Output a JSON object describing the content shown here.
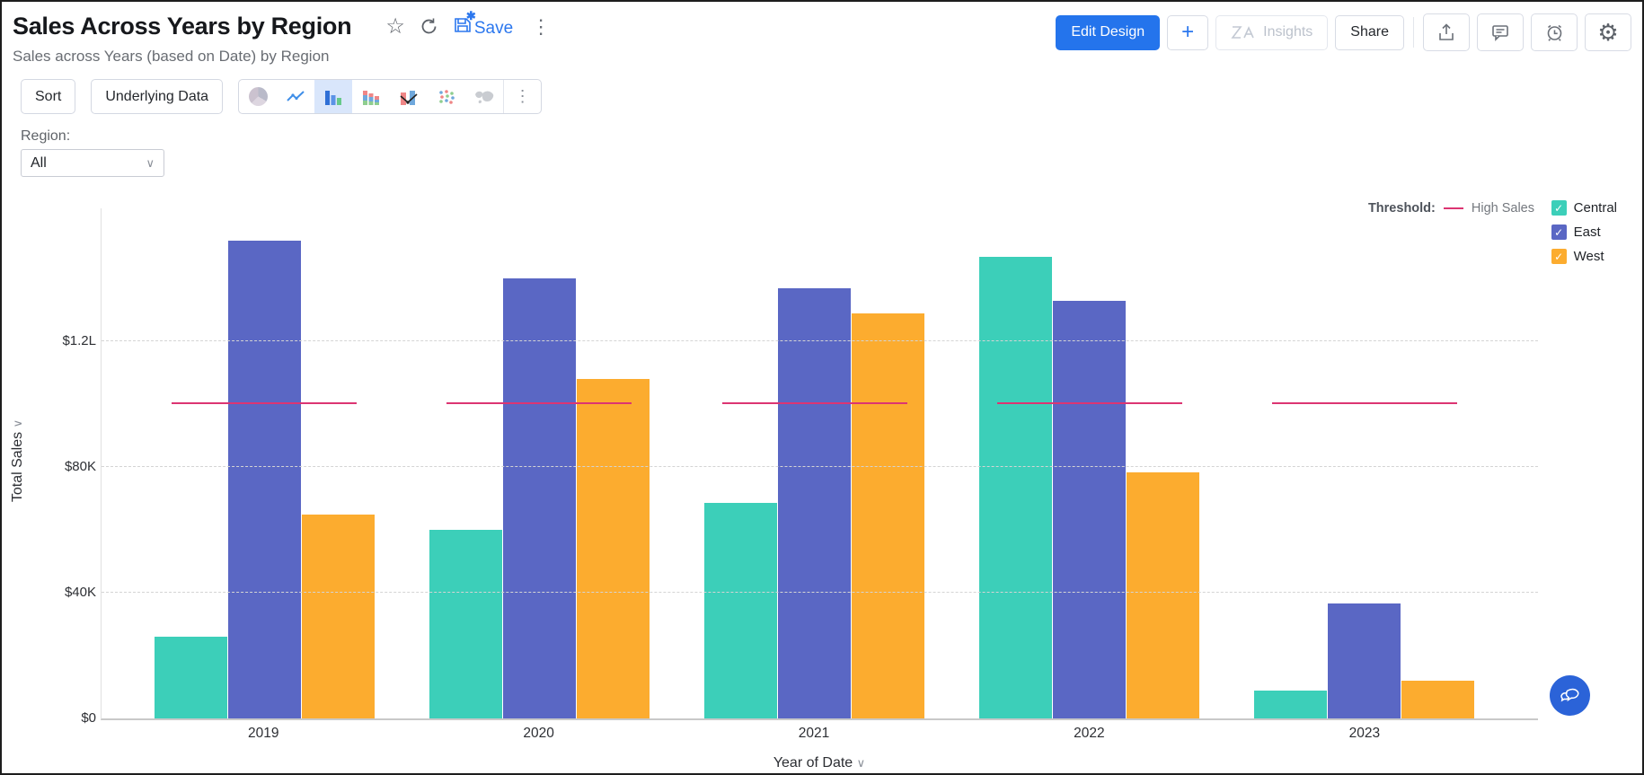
{
  "header": {
    "title": "Sales Across Years by Region",
    "subtitle": "Sales across Years (based on Date) by Region",
    "save_label": "Save",
    "actions": {
      "edit_design": "Edit Design",
      "plus": "+",
      "insights": "Insights",
      "share": "Share"
    },
    "icons": {
      "favorite": "star-outline",
      "refresh": "circular-arrow",
      "save": "floppy-with-asterisk",
      "more": "kebab-menu",
      "export": "share-up-arrow",
      "comment": "speech-bubble",
      "alerts": "alarm-clock",
      "settings": "gear",
      "assistant": "chat-bubbles"
    }
  },
  "toolbar": {
    "sort": "Sort",
    "underlying_data": "Underlying Data",
    "chart_types": [
      "pie",
      "line",
      "bar",
      "stacked-bar",
      "bar-line-combo",
      "scatter",
      "map"
    ],
    "selected_chart_type": "bar"
  },
  "filter": {
    "label": "Region:",
    "value": "All"
  },
  "chart_data": {
    "type": "bar",
    "title": "Sales Across Years by Region",
    "categories": [
      "2019",
      "2020",
      "2021",
      "2022",
      "2023"
    ],
    "series": [
      {
        "name": "Central",
        "color": "#3ccfb9",
        "values": [
          26000,
          60000,
          68500,
          147000,
          9000
        ]
      },
      {
        "name": "East",
        "color": "#5a67c4",
        "values": [
          152000,
          140000,
          137000,
          133000,
          36500
        ]
      },
      {
        "name": "West",
        "color": "#fcac2f",
        "values": [
          65000,
          108000,
          129000,
          78500,
          12000
        ]
      }
    ],
    "threshold": {
      "legend_label": "Threshold:",
      "label": "High Sales",
      "value": 100000,
      "color": "#dc3572"
    },
    "xlabel": "Year of Date",
    "ylabel": "Total Sales",
    "yticks": [
      "$0",
      "$40K",
      "$80K",
      "$1.2L"
    ],
    "ytick_values": [
      0,
      40000,
      80000,
      120000
    ],
    "ylim": [
      0,
      163000
    ],
    "grid": "horizontal-dashed",
    "legend_position": "top-right"
  }
}
